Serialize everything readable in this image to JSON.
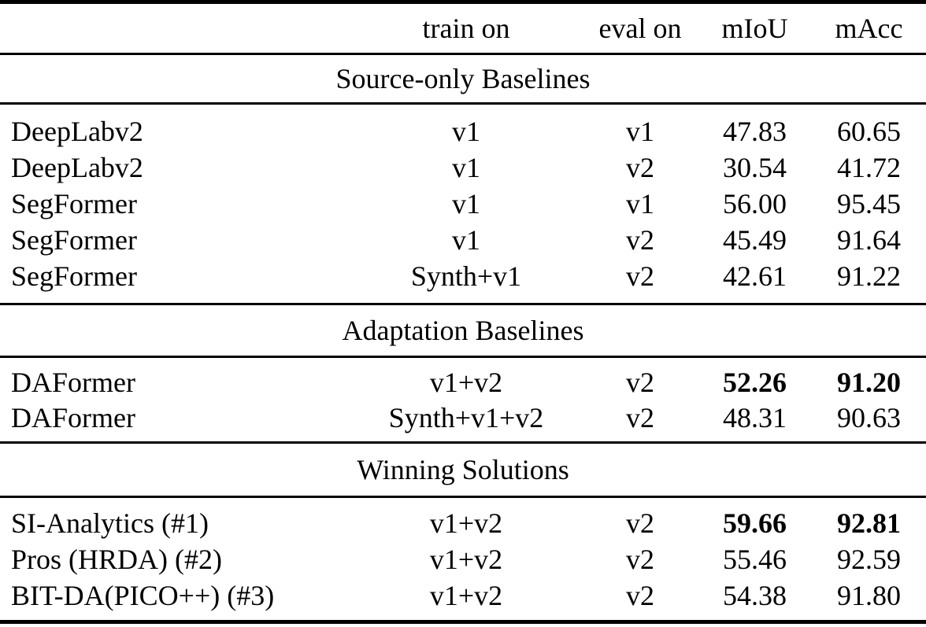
{
  "table": {
    "columns": [
      "",
      "train on",
      "eval on",
      "mIoU",
      "mAcc"
    ],
    "sections": [
      {
        "title": "Source-only Baselines",
        "rows": [
          {
            "method": "DeepLabv2",
            "train_on": "v1",
            "eval_on": "v1",
            "miou": "47.83",
            "macc": "60.65",
            "bold_metrics": false
          },
          {
            "method": "DeepLabv2",
            "train_on": "v1",
            "eval_on": "v2",
            "miou": "30.54",
            "macc": "41.72",
            "bold_metrics": false
          },
          {
            "method": "SegFormer",
            "train_on": "v1",
            "eval_on": "v1",
            "miou": "56.00",
            "macc": "95.45",
            "bold_metrics": false
          },
          {
            "method": "SegFormer",
            "train_on": "v1",
            "eval_on": "v2",
            "miou": "45.49",
            "macc": "91.64",
            "bold_metrics": false
          },
          {
            "method": "SegFormer",
            "train_on": "Synth+v1",
            "eval_on": "v2",
            "miou": "42.61",
            "macc": "91.22",
            "bold_metrics": false
          }
        ]
      },
      {
        "title": "Adaptation Baselines",
        "rows": [
          {
            "method": "DAFormer",
            "train_on": "v1+v2",
            "eval_on": "v2",
            "miou": "52.26",
            "macc": "91.20",
            "bold_metrics": true
          },
          {
            "method": "DAFormer",
            "train_on": "Synth+v1+v2",
            "eval_on": "v2",
            "miou": "48.31",
            "macc": "90.63",
            "bold_metrics": false
          }
        ]
      },
      {
        "title": "Winning Solutions",
        "rows": [
          {
            "method": "SI-Analytics (#1)",
            "train_on": "v1+v2",
            "eval_on": "v2",
            "miou": "59.66",
            "macc": "92.81",
            "bold_metrics": true
          },
          {
            "method": "Pros (HRDA) (#2)",
            "train_on": "v1+v2",
            "eval_on": "v2",
            "miou": "55.46",
            "macc": "92.59",
            "bold_metrics": false
          },
          {
            "method": "BIT-DA(PICO++) (#3)",
            "train_on": "v1+v2",
            "eval_on": "v2",
            "miou": "54.38",
            "macc": "91.80",
            "bold_metrics": false
          }
        ]
      }
    ],
    "colors": {
      "text": "#000000",
      "background": "#ffffff",
      "rule": "#000000"
    }
  }
}
